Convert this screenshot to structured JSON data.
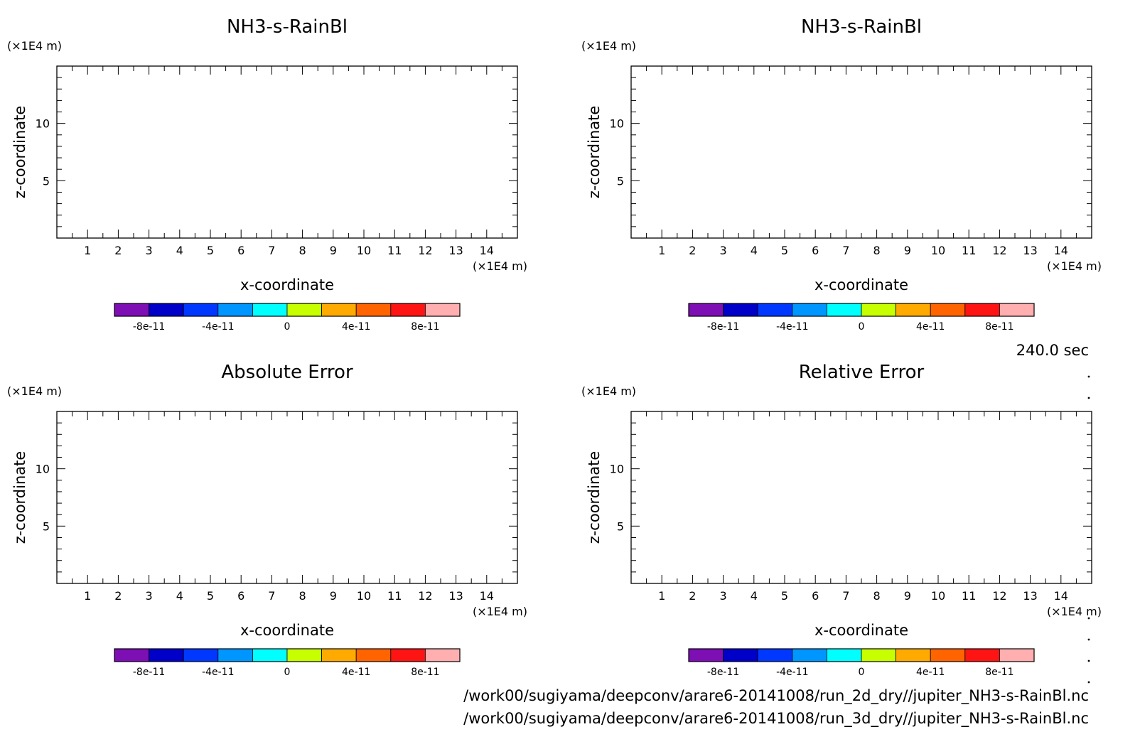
{
  "figure": {
    "time_label": "240.0 sec",
    "source_files": [
      "/work00/sugiyama/deepconv/arare6-20141008/run_2d_dry//jupiter_NH3-s-RainBl.nc",
      "/work00/sugiyama/deepconv/arare6-20141008/run_3d_dry//jupiter_NH3-s-RainBl.nc"
    ]
  },
  "chart_data": [
    {
      "type": "heatmap",
      "title": "NH3-s-RainBl",
      "xlabel": "x-coordinate",
      "ylabel": "z-coordinate",
      "x_unit": "(×1E4 m)",
      "y_unit": "(×1E4 m)",
      "x_ticks": [
        1,
        2,
        3,
        4,
        5,
        6,
        7,
        8,
        9,
        10,
        11,
        12,
        13,
        14
      ],
      "y_ticks": [
        5,
        10
      ],
      "colorbar_labels": [
        "-8e-11",
        "-4e-11",
        "0",
        "4e-11",
        "8e-11"
      ],
      "values": []
    },
    {
      "type": "heatmap",
      "title": "NH3-s-RainBl",
      "xlabel": "x-coordinate",
      "ylabel": "z-coordinate",
      "x_unit": "(×1E4 m)",
      "y_unit": "(×1E4 m)",
      "x_ticks": [
        1,
        2,
        3,
        4,
        5,
        6,
        7,
        8,
        9,
        10,
        11,
        12,
        13,
        14
      ],
      "y_ticks": [
        5,
        10
      ],
      "colorbar_labels": [
        "-8e-11",
        "-4e-11",
        "0",
        "4e-11",
        "8e-11"
      ],
      "values": []
    },
    {
      "type": "heatmap",
      "title": "Absolute Error",
      "xlabel": "x-coordinate",
      "ylabel": "z-coordinate",
      "x_unit": "(×1E4 m)",
      "y_unit": "(×1E4 m)",
      "x_ticks": [
        1,
        2,
        3,
        4,
        5,
        6,
        7,
        8,
        9,
        10,
        11,
        12,
        13,
        14
      ],
      "y_ticks": [
        5,
        10
      ],
      "colorbar_labels": [
        "-8e-11",
        "-4e-11",
        "0",
        "4e-11",
        "8e-11"
      ],
      "values": []
    },
    {
      "type": "heatmap",
      "title": "Relative Error",
      "xlabel": "x-coordinate",
      "ylabel": "z-coordinate",
      "x_unit": "(×1E4 m)",
      "y_unit": "(×1E4 m)",
      "x_ticks": [
        1,
        2,
        3,
        4,
        5,
        6,
        7,
        8,
        9,
        10,
        11,
        12,
        13,
        14
      ],
      "y_ticks": [
        5,
        10
      ],
      "colorbar_labels": [
        "-8e-11",
        "-4e-11",
        "0",
        "4e-11",
        "8e-11"
      ],
      "values": []
    }
  ],
  "colors": {
    "colorbar": [
      "#7e0fb4",
      "#0000c8",
      "#0038ff",
      "#0096ff",
      "#00ffff",
      "#c8ff00",
      "#ffaa00",
      "#ff6400",
      "#ff1414",
      "#ffafaf"
    ],
    "axes": "#000000"
  }
}
